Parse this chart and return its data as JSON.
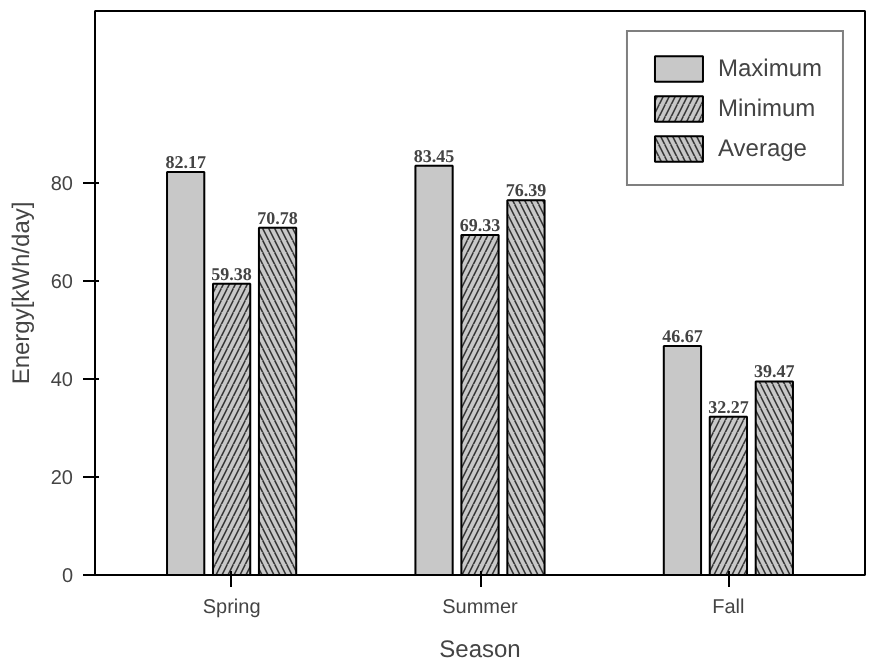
{
  "chart_data": {
    "type": "bar",
    "xlabel": "Season",
    "ylabel": "Energy[kWh/day]",
    "categories": [
      "Spring",
      "Summer",
      "Fall"
    ],
    "series": [
      {
        "name": "Maximum",
        "color": "#c8c8c8",
        "values": [
          82.17,
          83.45,
          46.67
        ]
      },
      {
        "name": "Minimum",
        "color": "#c8c8c8",
        "values": [
          59.38,
          69.33,
          32.27
        ]
      },
      {
        "name": "Average",
        "color": "#c8c8c8",
        "values": [
          70.78,
          76.39,
          39.47
        ]
      }
    ],
    "ylim": [
      0,
      115
    ],
    "yticks": [
      0,
      20,
      40,
      60,
      80
    ],
    "grid": false,
    "legend": "top right",
    "data_labels": true
  }
}
